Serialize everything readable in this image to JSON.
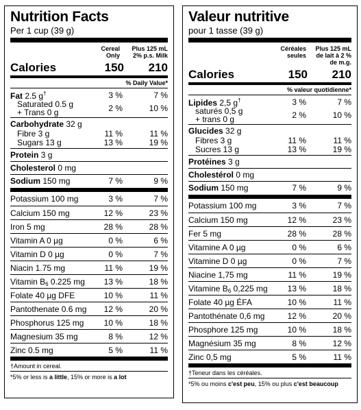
{
  "en": {
    "title": "Nutrition Facts",
    "serving": "Per 1 cup (39 g)",
    "col1_l1": "Cereal",
    "col1_l2": "Only",
    "col2_l1": "Plus 125 mL",
    "col2_l2": "2% p.s. Milk",
    "calories_label": "Calories",
    "calories_1": "150",
    "calories_2": "210",
    "dv_header": "% Daily Value*",
    "fat_label": "Fat",
    "fat_amount": "2.5 g",
    "fat_mark": "†",
    "fat_v1": "3 %",
    "fat_v2": "7 %",
    "sat_label": "Saturated 0.5 g",
    "trans_label": "+ Trans 0 g",
    "sat_v1": "2 %",
    "sat_v2": "10 %",
    "carb_label": "Carbohydrate",
    "carb_amount": "32 g",
    "fibre_label": "Fibre 3 g",
    "fibre_v1": "11 %",
    "fibre_v2": "11 %",
    "sugars_label": "Sugars 13 g",
    "sugars_v1": "13 %",
    "sugars_v2": "19 %",
    "protein_label": "Protein",
    "protein_amount": "3 g",
    "chol_label": "Cholesterol",
    "chol_amount": "0 mg",
    "sodium_label": "Sodium",
    "sodium_amount": "150 mg",
    "sodium_v1": "7 %",
    "sodium_v2": "9 %",
    "micros": [
      {
        "label": "Potassium 100 mg",
        "v1": "3 %",
        "v2": "7 %"
      },
      {
        "label": "Calcium 150 mg",
        "v1": "12 %",
        "v2": "23 %"
      },
      {
        "label": "Iron 5 mg",
        "v1": "28 %",
        "v2": "28 %"
      },
      {
        "label": "Vitamin A 0 µg",
        "v1": "0 %",
        "v2": "6 %"
      },
      {
        "label": "Vitamin D 0 µg",
        "v1": "0 %",
        "v2": "7 %"
      },
      {
        "label": "Niacin 1.75 mg",
        "v1": "11 %",
        "v2": "19 %"
      },
      {
        "label_pre": "Vitamin B",
        "label_sub": "6",
        "label_post": " 0.225 mg",
        "v1": "13 %",
        "v2": "18 %"
      },
      {
        "label": "Folate 40 µg DFE",
        "v1": "10 %",
        "v2": "11 %"
      },
      {
        "label": "Pantothenate 0.6 mg",
        "v1": "12 %",
        "v2": "20 %"
      },
      {
        "label": "Phosphorus 125 mg",
        "v1": "10 %",
        "v2": "18 %"
      },
      {
        "label": "Magnesium 35 mg",
        "v1": "8 %",
        "v2": "12 %"
      },
      {
        "label": "Zinc 0.5 mg",
        "v1": "5 %",
        "v2": "11 %"
      }
    ],
    "footnote1": "†Amount in cereal.",
    "footnote2_a": "*5% or less is ",
    "footnote2_b": "a little",
    "footnote2_c": ", 15% or more is ",
    "footnote2_d": "a lot"
  },
  "fr": {
    "title": "Valeur nutritive",
    "serving": "pour 1 tasse (39 g)",
    "col1_l1": "Céréales",
    "col1_l2": "seules",
    "col2_l1": "Plus 125 mL",
    "col2_l2": "de lait à 2 %",
    "col2_l3": "de m.g.",
    "calories_label": "Calories",
    "calories_1": "150",
    "calories_2": "210",
    "dv_header": "% valeur quotidienne*",
    "fat_label": "Lipides",
    "fat_amount": "2,5 g",
    "fat_mark": "†",
    "fat_v1": "3 %",
    "fat_v2": "7 %",
    "sat_label": "saturés 0,5 g",
    "trans_label": "+ trans 0 g",
    "sat_v1": "2 %",
    "sat_v2": "10 %",
    "carb_label": "Glucides",
    "carb_amount": "32 g",
    "fibre_label": "Fibres 3 g",
    "fibre_v1": "11 %",
    "fibre_v2": "11 %",
    "sugars_label": "Sucres 13 g",
    "sugars_v1": "13 %",
    "sugars_v2": "19 %",
    "protein_label": "Protéines",
    "protein_amount": "3 g",
    "chol_label": "Cholestérol",
    "chol_amount": "0 mg",
    "sodium_label": "Sodium",
    "sodium_amount": "150 mg",
    "sodium_v1": "7 %",
    "sodium_v2": "9 %",
    "micros": [
      {
        "label": "Potassium 100 mg",
        "v1": "3 %",
        "v2": "7 %"
      },
      {
        "label": "Calcium 150 mg",
        "v1": "12 %",
        "v2": "23 %"
      },
      {
        "label": "Fer 5 mg",
        "v1": "28 %",
        "v2": "28 %"
      },
      {
        "label": "Vitamine A 0 µg",
        "v1": "0 %",
        "v2": "6 %"
      },
      {
        "label": "Vitamine D 0 µg",
        "v1": "0 %",
        "v2": "7 %"
      },
      {
        "label": "Niacine 1,75 mg",
        "v1": "11 %",
        "v2": "19 %"
      },
      {
        "label_pre": "Vitamine B",
        "label_sub": "6",
        "label_post": " 0,225 mg",
        "v1": "13 %",
        "v2": "18 %"
      },
      {
        "label": "Folate 40 µg ÉFA",
        "v1": "10 %",
        "v2": "11 %"
      },
      {
        "label": "Pantothénate 0,6 mg",
        "v1": "12 %",
        "v2": "20 %"
      },
      {
        "label": "Phosphore 125 mg",
        "v1": "10 %",
        "v2": "18 %"
      },
      {
        "label": "Magnésium 35 mg",
        "v1": "8 %",
        "v2": "12 %"
      },
      {
        "label": "Zinc 0,5 mg",
        "v1": "5 %",
        "v2": "11 %"
      }
    ],
    "footnote1": "†Teneur dans les céréales.",
    "footnote2_a": "*5% ou moins ",
    "footnote2_b": "c'est peu",
    "footnote2_c": ", 15% ou plus ",
    "footnote2_d": "c'est beaucoup"
  }
}
